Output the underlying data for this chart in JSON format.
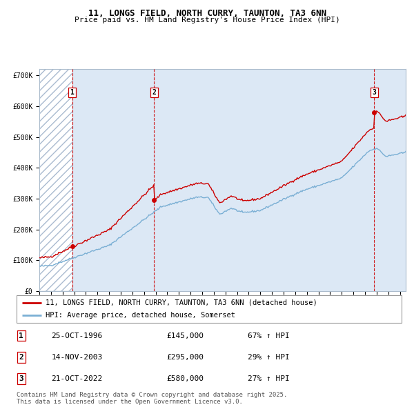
{
  "title": "11, LONGS FIELD, NORTH CURRY, TAUNTON, TA3 6NN",
  "subtitle": "Price paid vs. HM Land Registry's House Price Index (HPI)",
  "xlim": [
    1994.0,
    2025.5
  ],
  "ylim": [
    0,
    720000
  ],
  "yticks": [
    0,
    100000,
    200000,
    300000,
    400000,
    500000,
    600000,
    700000
  ],
  "ytick_labels": [
    "£0",
    "£100K",
    "£200K",
    "£300K",
    "£400K",
    "£500K",
    "£600K",
    "£700K"
  ],
  "sale_dates": [
    1996.82,
    2003.87,
    2022.8
  ],
  "sale_prices": [
    145000,
    295000,
    580000
  ],
  "sale_labels": [
    "1",
    "2",
    "3"
  ],
  "red_line_color": "#cc0000",
  "blue_line_color": "#7aafd4",
  "grid_color": "#c8d8e8",
  "bg_color": "#dce8f5",
  "hatch_color": "#aabbd0",
  "vline_color": "#cc0000",
  "legend_line1": "11, LONGS FIELD, NORTH CURRY, TAUNTON, TA3 6NN (detached house)",
  "legend_line2": "HPI: Average price, detached house, Somerset",
  "table_rows": [
    [
      "1",
      "25-OCT-1996",
      "£145,000",
      "67% ↑ HPI"
    ],
    [
      "2",
      "14-NOV-2003",
      "£295,000",
      "29% ↑ HPI"
    ],
    [
      "3",
      "21-OCT-2022",
      "£580,000",
      "27% ↑ HPI"
    ]
  ],
  "footnote": "Contains HM Land Registry data © Crown copyright and database right 2025.\nThis data is licensed under the Open Government Licence v3.0.",
  "title_fontsize": 9,
  "subtitle_fontsize": 8,
  "tick_fontsize": 7,
  "legend_fontsize": 7.5,
  "table_fontsize": 8
}
